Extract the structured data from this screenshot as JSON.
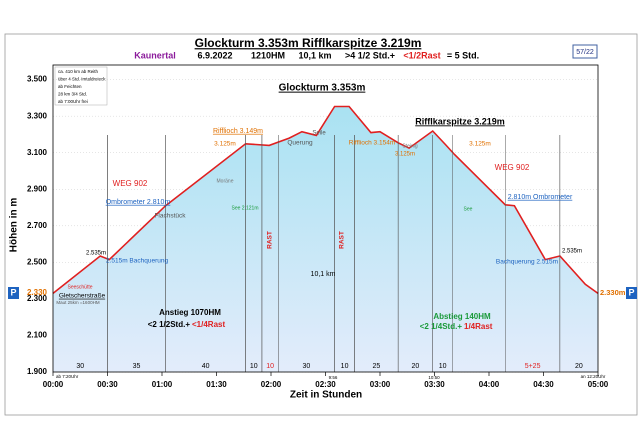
{
  "chart_data": {
    "type": "area",
    "title": "Glockturm 3.353m  Rifflkarspitze 3.219m",
    "subtitle": [
      {
        "text": "Kaunertal",
        "color": "#8b1a9b"
      },
      {
        "text": "6.9.2022",
        "color": "#000000"
      },
      {
        "text": "1210HM",
        "color": "#000000"
      },
      {
        "text": "10,1 km",
        "color": "#000000"
      },
      {
        "text": ">4 1/2 Std.+",
        "color": "#000000"
      },
      {
        "text": "<1/2Rast",
        "color": "#e02020"
      },
      {
        "text": "= 5 Std.",
        "color": "#000000"
      }
    ],
    "badge": "57/22",
    "notes": [
      "ca. 410 km ab Reith",
      "über 4 Std. Imtaldreieck",
      "ab Feichten",
      "28 km 3/4 Std.",
      "ab 7:00Uhr frei"
    ],
    "ylabel": "Höhen in m",
    "xlabel": "Zeit in Stunden",
    "x": [
      0,
      26,
      31,
      62,
      106,
      119,
      130,
      137,
      145,
      155,
      163,
      175,
      180,
      190,
      196,
      209,
      216,
      221,
      249,
      254,
      271,
      279,
      293,
      300
    ],
    "series": [
      {
        "name": "Höhenprofil",
        "color": "#e02020",
        "values": [
          2330,
          2535,
          2515,
          2810,
          3149,
          3140,
          3180,
          3215,
          3195,
          3353,
          3353,
          3210,
          3215,
          3154,
          3125,
          3219,
          3145,
          3090,
          2815,
          2810,
          2515,
          2535,
          2380,
          2330
        ]
      }
    ],
    "xlim": [
      0,
      300
    ],
    "xticks": [
      {
        "value": 0,
        "label": "00:00"
      },
      {
        "value": 30,
        "label": "00:30"
      },
      {
        "value": 60,
        "label": "01:00"
      },
      {
        "value": 90,
        "label": "01:30"
      },
      {
        "value": 120,
        "label": "02:00"
      },
      {
        "value": 150,
        "label": "02:30"
      },
      {
        "value": 180,
        "label": "03:00"
      },
      {
        "value": 210,
        "label": "03:30"
      },
      {
        "value": 240,
        "label": "04:00"
      },
      {
        "value": 270,
        "label": "04:30"
      },
      {
        "value": 300,
        "label": "05:00"
      }
    ],
    "ylim": [
      1900,
      3580
    ],
    "yticks": [
      {
        "value": 1900,
        "label": "1.900"
      },
      {
        "value": 2100,
        "label": "2.100"
      },
      {
        "value": 2300,
        "label": "2.300"
      },
      {
        "value": 2500,
        "label": "2.500"
      },
      {
        "value": 2700,
        "label": "2.700"
      },
      {
        "value": 2900,
        "label": "2.900"
      },
      {
        "value": 3100,
        "label": "3.100"
      },
      {
        "value": 3300,
        "label": "3.300"
      },
      {
        "value": 3500,
        "label": "3.500"
      }
    ],
    "grid": true,
    "segments": [
      {
        "label": "30",
        "start": 0,
        "end": 30,
        "color": "#000000"
      },
      {
        "label": "35",
        "start": 30,
        "end": 62,
        "color": "#000000"
      },
      {
        "label": "40",
        "start": 62,
        "end": 106,
        "color": "#000000"
      },
      {
        "label": "10",
        "start": 106,
        "end": 115,
        "color": "#000000"
      },
      {
        "label": "10",
        "start": 115,
        "end": 124,
        "color": "#e02020"
      },
      {
        "label": "30",
        "start": 124,
        "end": 155,
        "color": "#000000"
      },
      {
        "label": "10",
        "start": 155,
        "end": 166,
        "color": "#000000"
      },
      {
        "label": "25",
        "start": 166,
        "end": 190,
        "color": "#000000"
      },
      {
        "label": "20",
        "start": 190,
        "end": 209,
        "color": "#000000"
      },
      {
        "label": "10",
        "start": 209,
        "end": 220,
        "color": "#000000"
      },
      {
        "label": "5+25",
        "start": 249,
        "end": 279,
        "color": "#e02020"
      },
      {
        "label": "20",
        "start": 279,
        "end": 300,
        "color": "#000000"
      }
    ],
    "annotations": [
      "Glockturm 3.353m",
      "Rifflkarspitze 3.219m",
      "Rifflioch 3.149m",
      "3.125m",
      "Seile",
      "Querung",
      "Rifflioch 3.154m",
      "3.125m",
      "Steinig",
      "3.125m",
      "WEG 902",
      "WEG 902",
      "Ombrometer 2.810m",
      "2.810m Ombrometer",
      "Flachstück",
      "Moräne",
      "See 2.121m",
      "See",
      "2.535m",
      "2.515m Bachquerung",
      "Bachquerung 2.515m",
      "2.535m",
      "Seeschütte",
      "Gletscherstraße",
      "Maut 25km =1600HM",
      "10,1 km",
      "RAST",
      "RAST",
      "Anstieg 1070HM",
      "<2 1/2Std.+",
      "<1/4Rast",
      "Abstieg 140HM",
      "<2 1/4Std.+",
      "1/4Rast",
      "2.330m",
      "2.330",
      "ab 7:20Uhr",
      "9:56",
      "10:50",
      "an 12:20Uhr",
      "P",
      "P"
    ]
  }
}
